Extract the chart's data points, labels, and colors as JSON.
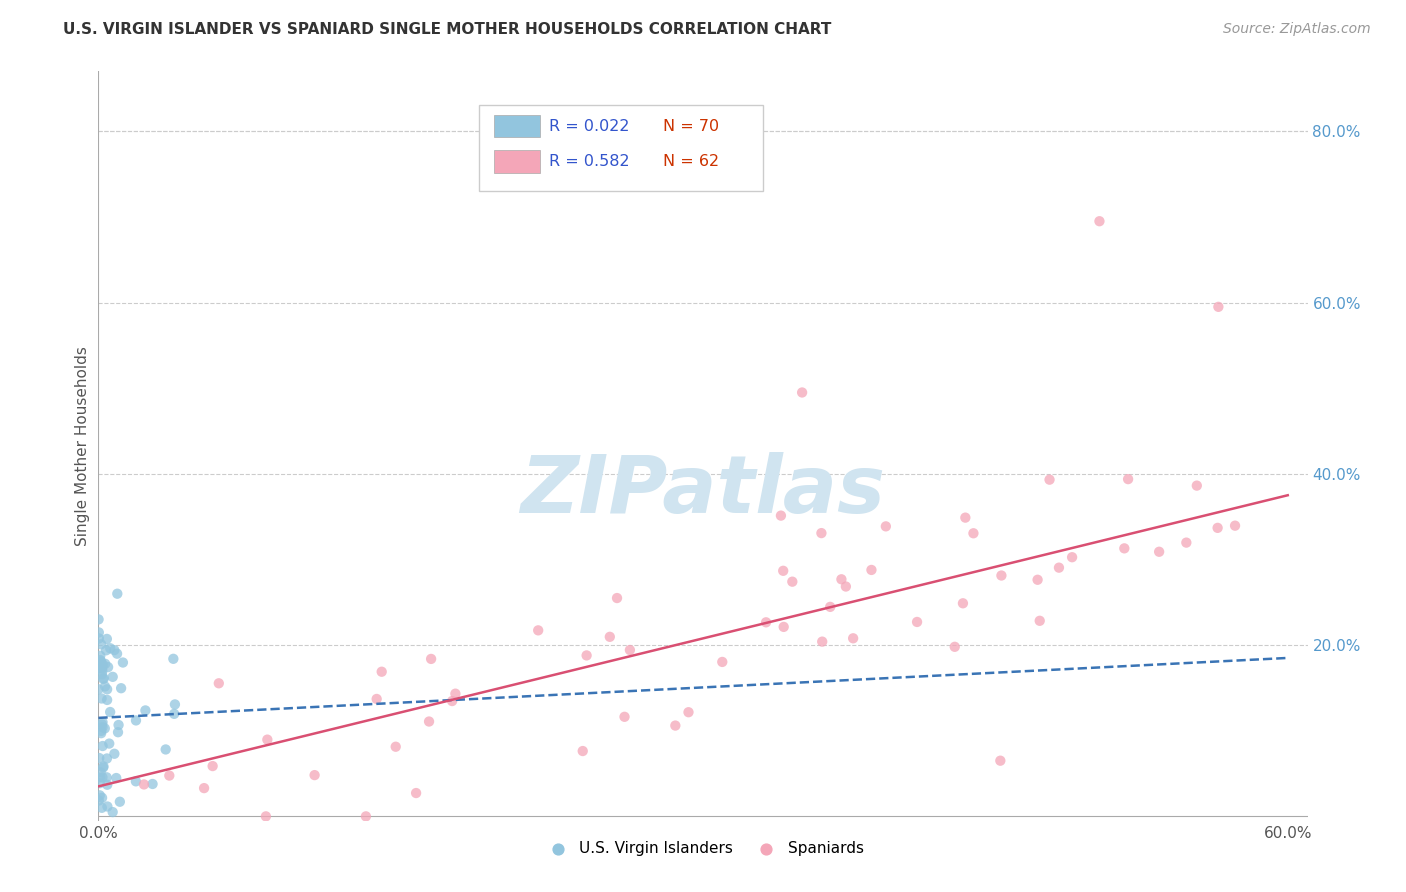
{
  "title": "U.S. VIRGIN ISLANDER VS SPANIARD SINGLE MOTHER HOUSEHOLDS CORRELATION CHART",
  "source": "Source: ZipAtlas.com",
  "ylabel": "Single Mother Households",
  "xlim": [
    0.0,
    0.61
  ],
  "ylim": [
    -0.005,
    0.87
  ],
  "xtick_labels": [
    "0.0%",
    "",
    "",
    "",
    "",
    "",
    "60.0%"
  ],
  "xtick_vals": [
    0.0,
    0.1,
    0.2,
    0.3,
    0.4,
    0.5,
    0.6
  ],
  "ytick_labels": [
    "20.0%",
    "40.0%",
    "60.0%",
    "80.0%"
  ],
  "ytick_vals": [
    0.2,
    0.4,
    0.6,
    0.8
  ],
  "legend_labels": [
    "U.S. Virgin Islanders",
    "Spaniards"
  ],
  "legend_R": [
    "R = 0.022",
    "R = 0.582"
  ],
  "legend_N": [
    "N = 70",
    "N = 62"
  ],
  "blue_color": "#92c5de",
  "pink_color": "#f4a6b8",
  "blue_line_color": "#3a74b5",
  "pink_line_color": "#d94f72",
  "watermark_color": "#d0e4f0",
  "grid_color": "#cccccc",
  "title_color": "#333333",
  "source_color": "#999999",
  "right_tick_color": "#5599cc",
  "blue_text_color": "#3355cc",
  "red_text_color": "#cc3300"
}
